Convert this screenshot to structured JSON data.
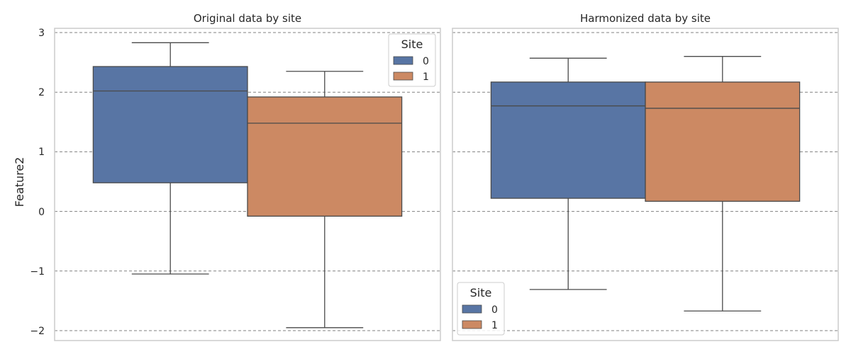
{
  "colors": {
    "site_0": "#5875a4",
    "site_1": "#cc8963",
    "grid": "#808080",
    "frame": "#cccccc",
    "whisker": "#4a4a4a",
    "text": "#262626"
  },
  "chart_data": [
    {
      "type": "box",
      "title": "Original data by site",
      "ylabel": "Feature2",
      "ylim": [
        -2.2,
        3.05
      ],
      "yticks": [
        3,
        2,
        1,
        0,
        -1,
        -2
      ],
      "ytick_labels": [
        "3",
        "2",
        "1",
        "0",
        "−1",
        "−2"
      ],
      "grid": true,
      "legend": {
        "title": "Site",
        "position": "upper right",
        "entries": [
          "0",
          "1"
        ]
      },
      "series": [
        {
          "name": "0",
          "whisker_low": -1.05,
          "q1": 0.48,
          "median": 2.02,
          "q3": 2.43,
          "whisker_high": 2.83
        },
        {
          "name": "1",
          "whisker_low": -1.95,
          "q1": -0.08,
          "median": 1.48,
          "q3": 1.92,
          "whisker_high": 2.35
        }
      ]
    },
    {
      "type": "box",
      "title": "Harmonized data by site",
      "ylabel": "",
      "ylim": [
        -2.2,
        3.05
      ],
      "grid": true,
      "legend": {
        "title": "Site",
        "position": "lower left",
        "entries": [
          "0",
          "1"
        ]
      },
      "series": [
        {
          "name": "0",
          "whisker_low": -1.31,
          "q1": 0.22,
          "median": 1.77,
          "q3": 2.17,
          "whisker_high": 2.57
        },
        {
          "name": "1",
          "whisker_low": -1.67,
          "q1": 0.17,
          "median": 1.73,
          "q3": 2.17,
          "whisker_high": 2.6
        }
      ]
    }
  ]
}
